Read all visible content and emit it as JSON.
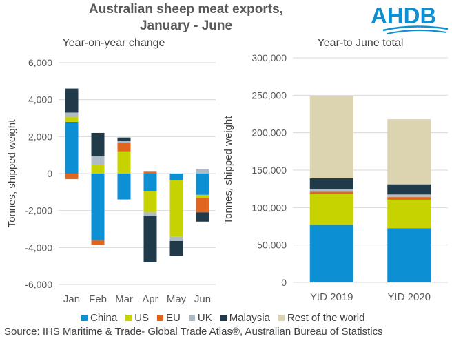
{
  "title_line1": "Australian sheep meat exports,",
  "title_line2": "January - June",
  "logo_text": "AHDB",
  "source": "Source: IHS Maritime & Trade- Global Trade Atlas®, Australian Bureau of Statistics",
  "colors": {
    "China": "#0d8fd3",
    "US": "#c7d300",
    "EU": "#e0661f",
    "UK": "#aebbc4",
    "Malaysia": "#213a4a",
    "Rest of the world": "#dcd4b0",
    "logo": "#0d8fd3",
    "gridline": "#d9d9d9",
    "axis_text": "#595959"
  },
  "legend": [
    "China",
    "US",
    "EU",
    "UK",
    "Malaysia",
    "Rest of the world"
  ],
  "chart_data": [
    {
      "type": "bar",
      "stacked": true,
      "title": "Year-on-year change",
      "ylabel": "Tonnes, shipped weight",
      "ylim": [
        -6000,
        6000
      ],
      "yticks": [
        -6000,
        -4000,
        -2000,
        0,
        2000,
        4000,
        6000
      ],
      "ytick_labels": [
        "-6,000",
        "-4,000",
        "-2,000",
        "0",
        "2,000",
        "4,000",
        "6,000"
      ],
      "categories": [
        "Jan",
        "Feb",
        "Mar",
        "Apr",
        "May",
        "Jun"
      ],
      "grid": true,
      "series": [
        {
          "name": "China",
          "values": [
            2800,
            -3600,
            -1400,
            -950,
            -350,
            -1150
          ]
        },
        {
          "name": "US",
          "values": [
            250,
            450,
            1200,
            -1150,
            -3050,
            -150
          ]
        },
        {
          "name": "EU",
          "values": [
            -300,
            -250,
            450,
            100,
            0,
            -800
          ]
        },
        {
          "name": "UK",
          "values": [
            250,
            500,
            100,
            -200,
            -250,
            250
          ]
        },
        {
          "name": "Malaysia",
          "values": [
            1300,
            1250,
            200,
            -2500,
            -800,
            -500
          ]
        }
      ]
    },
    {
      "type": "bar",
      "stacked": true,
      "title": "Year-to June total",
      "ylabel": "Tonnes, shipped weight",
      "ylim": [
        0,
        300000
      ],
      "yticks": [
        0,
        50000,
        100000,
        150000,
        200000,
        250000,
        300000
      ],
      "ytick_labels": [
        "0",
        "50,000",
        "100,000",
        "150,000",
        "200,000",
        "250,000",
        "300,000"
      ],
      "categories": [
        "YtD 2019",
        "YtD 2020"
      ],
      "grid": true,
      "series": [
        {
          "name": "China",
          "values": [
            77000,
            72500
          ]
        },
        {
          "name": "US",
          "values": [
            41000,
            38000
          ]
        },
        {
          "name": "EU",
          "values": [
            3000,
            3500
          ]
        },
        {
          "name": "UK",
          "values": [
            3500,
            3500
          ]
        },
        {
          "name": "Malaysia",
          "values": [
            14500,
            13500
          ]
        },
        {
          "name": "Rest of the world",
          "values": [
            110000,
            87000
          ]
        }
      ]
    }
  ]
}
